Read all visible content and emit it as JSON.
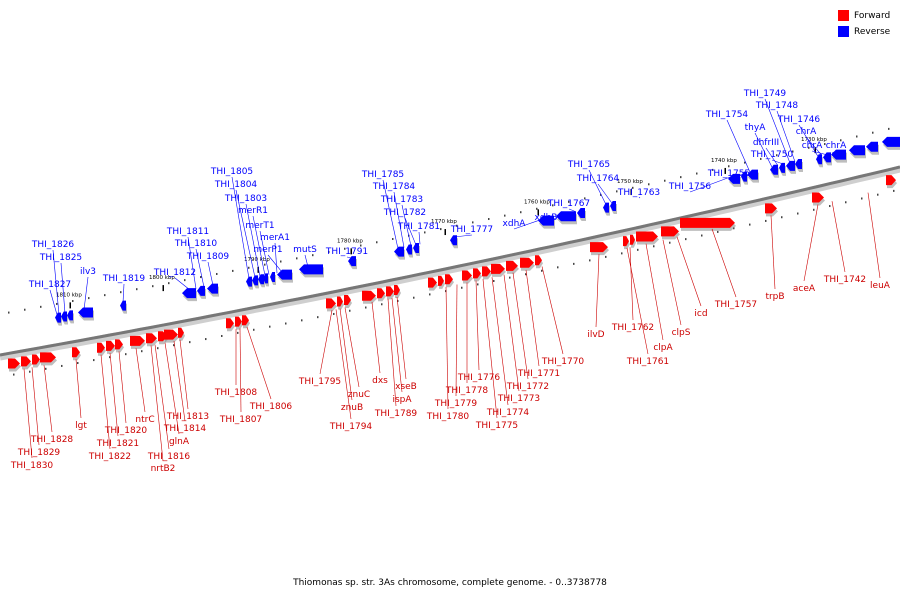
{
  "legend": {
    "forward_label": "Forward",
    "reverse_label": "Reverse",
    "forward_color": "#ff0000",
    "reverse_color": "#0000ff"
  },
  "caption": "Thiomonas sp. str. 3As chromosome, complete genome. - 0..3738778",
  "ticks": [
    "1810 kbp",
    "1800 kbp",
    "1790 kbp",
    "1780 kbp",
    "1770 kbp",
    "1760 kbp",
    "1750 kbp",
    "1740 kbp",
    "1730 kbp"
  ],
  "reverse_labels": [
    "THI_1749",
    "THI_1748",
    "THI_1754",
    "thyA",
    "THI_1746",
    "chrA",
    "dhfrIII",
    "chrA",
    "chrA",
    "THI_1750",
    "THI_1765",
    "THI_1764",
    "THI_1755",
    "THI_1763",
    "THI_1756",
    "THI_1767",
    "xdhA",
    "xdhB",
    "THI_1777",
    "THI_1805",
    "THI_1804",
    "THI_1803",
    "merR1",
    "merT1",
    "merA1",
    "merP1",
    "mutS",
    "THI_1785",
    "THI_1784",
    "THI_1783",
    "THI_1782",
    "THI_1781",
    "THI_1791",
    "THI_1811",
    "THI_1810",
    "THI_1809",
    "THI_1812",
    "THI_1819",
    "THI_1826",
    "THI_1825",
    "ilv3",
    "THI_1827"
  ],
  "forward_labels": [
    "trpB",
    "aceA",
    "THI_1742",
    "leuA",
    "THI_1757",
    "icd",
    "clpS",
    "clpA",
    "THI_1762",
    "THI_1761",
    "ilvD",
    "THI_1770",
    "THI_1771",
    "THI_1772",
    "THI_1773",
    "THI_1774",
    "THI_1775",
    "THI_1776",
    "THI_1778",
    "THI_1779",
    "THI_1780",
    "xseB",
    "dxs",
    "ispA",
    "THI_1789",
    "THI_1795",
    "znuC",
    "znuB",
    "THI_1794",
    "THI_1808",
    "THI_1806",
    "THI_1807",
    "lgt",
    "ntrC",
    "THI_1813",
    "THI_1814",
    "glnA",
    "THI_1816",
    "nrtB2",
    "THI_1820",
    "THI_1821",
    "THI_1822",
    "THI_1828",
    "THI_1829",
    "THI_1830"
  ]
}
